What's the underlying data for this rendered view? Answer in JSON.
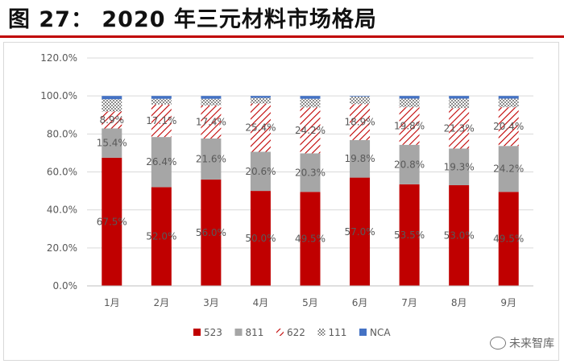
{
  "figure": {
    "title": "图 27：  2020 年三元材料市场格局"
  },
  "watermark": {
    "text": "未来智库"
  },
  "colors": {
    "523": "#c00000",
    "811": "#a6a6a6",
    "622": "#c00000",
    "111": "#8c8c8c",
    "NCA": "#4472c4",
    "rule": "#c00000"
  },
  "chart_data": {
    "type": "bar",
    "stacked": true,
    "title": "",
    "xlabel": "",
    "ylabel": "",
    "ylim": [
      0,
      120
    ],
    "yticks": [
      "0.0%",
      "20.0%",
      "40.0%",
      "60.0%",
      "80.0%",
      "100.0%",
      "120.0%"
    ],
    "ytick_values": [
      0,
      20,
      40,
      60,
      80,
      100,
      120
    ],
    "categories": [
      "1月",
      "2月",
      "3月",
      "4月",
      "5月",
      "6月",
      "7月",
      "8月",
      "9月"
    ],
    "legend_position": "bottom",
    "series": [
      {
        "name": "523",
        "values": [
          67.5,
          52.0,
          56.0,
          50.0,
          49.5,
          57.0,
          53.5,
          53.0,
          49.5
        ],
        "labels": [
          "67.5%",
          "52.0%",
          "56.0%",
          "50.0%",
          "49.5%",
          "57.0%",
          "53.5%",
          "53.0%",
          "49.5%"
        ]
      },
      {
        "name": "811",
        "values": [
          15.4,
          26.4,
          21.6,
          20.6,
          20.3,
          19.8,
          20.8,
          19.3,
          24.2
        ],
        "labels": [
          "15.4%",
          "26.4%",
          "21.6%",
          "20.6%",
          "20.3%",
          "19.8%",
          "20.8%",
          "19.3%",
          "24.2%"
        ]
      },
      {
        "name": "622",
        "values": [
          8.9,
          17.1,
          17.4,
          25.4,
          24.2,
          18.9,
          19.8,
          21.3,
          20.4
        ],
        "labels": [
          "8.9%",
          "17.1%",
          "17.4%",
          "25.4%",
          "24.2%",
          "18.9%",
          "19.8%",
          "21.3%",
          "20.4%"
        ]
      },
      {
        "name": "111",
        "values": [
          6.5,
          3.0,
          3.5,
          3.0,
          4.5,
          4.0,
          4.5,
          5.0,
          4.5
        ]
      },
      {
        "name": "NCA",
        "values": [
          1.7,
          1.5,
          1.5,
          1.0,
          1.5,
          0.3,
          1.4,
          1.4,
          1.4
        ]
      }
    ]
  }
}
